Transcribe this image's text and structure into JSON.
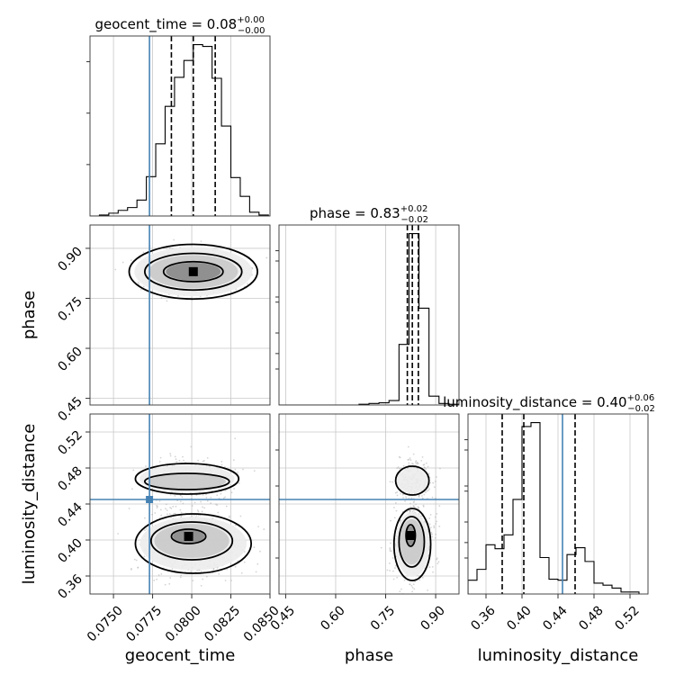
{
  "chart_data": {
    "type": "corner",
    "parameters": [
      "geocent_time",
      "phase",
      "luminosity_distance"
    ],
    "titles": [
      {
        "param": "geocent_time",
        "prefix": "geocent_time = ",
        "value": "0.08",
        "plus": "+0.00",
        "minus": "−0.00"
      },
      {
        "param": "phase",
        "prefix": "phase = ",
        "value": "0.83",
        "plus": "+0.02",
        "minus": "−0.02"
      },
      {
        "param": "luminosity_distance",
        "prefix": "luminosity_distance = ",
        "value": "0.40",
        "plus": "+0.06",
        "minus": "−0.02"
      }
    ],
    "axes": {
      "geocent_time": {
        "range": [
          0.0735,
          0.085
        ],
        "ticks": [
          0.075,
          0.0775,
          0.08,
          0.0825,
          0.085
        ],
        "tick_labels": [
          "0.0750",
          "0.0775",
          "0.0800",
          "0.0825",
          "0.0850"
        ]
      },
      "phase": {
        "range": [
          0.43,
          0.97
        ],
        "ticks": [
          0.45,
          0.6,
          0.75,
          0.9
        ],
        "tick_labels": [
          "0.45",
          "0.60",
          "0.75",
          "0.90"
        ]
      },
      "luminosity_distance": {
        "range": [
          0.34,
          0.54
        ],
        "ticks": [
          0.36,
          0.4,
          0.44,
          0.48,
          0.52
        ],
        "tick_labels": [
          "0.36",
          "0.40",
          "0.44",
          "0.48",
          "0.52"
        ]
      }
    },
    "truths": {
      "geocent_time": 0.0773,
      "phase": null,
      "luminosity_distance": 0.445
    },
    "quantiles": {
      "geocent_time": [
        0.0787,
        0.0801,
        0.0815
      ],
      "phase": [
        0.815,
        0.83,
        0.848
      ],
      "luminosity_distance": [
        0.378,
        0.402,
        0.459
      ]
    },
    "histograms": {
      "geocent_time": {
        "edges": [
          0.0735,
          0.0741,
          0.0747,
          0.0753,
          0.0759,
          0.0765,
          0.0771,
          0.0777,
          0.0783,
          0.0789,
          0.0795,
          0.0801,
          0.0807,
          0.0813,
          0.0819,
          0.0825,
          0.0831,
          0.0837,
          0.0843,
          0.0849
        ],
        "counts": [
          0,
          1,
          3,
          6,
          9,
          17,
          42,
          77,
          117,
          148,
          166,
          183,
          181,
          147,
          96,
          41,
          21,
          4,
          1
        ]
      },
      "phase": {
        "edges": [
          0.43,
          0.46,
          0.49,
          0.52,
          0.55,
          0.58,
          0.61,
          0.64,
          0.67,
          0.7,
          0.73,
          0.76,
          0.79,
          0.82,
          0.85,
          0.88,
          0.91,
          0.94,
          0.97
        ],
        "counts": [
          0,
          0,
          0,
          0,
          0,
          0,
          0,
          0,
          1,
          2,
          3,
          6,
          82,
          232,
          131,
          12,
          2,
          1
        ]
      },
      "luminosity_distance": {
        "edges": [
          0.34,
          0.35,
          0.36,
          0.37,
          0.38,
          0.39,
          0.4,
          0.41,
          0.42,
          0.43,
          0.44,
          0.45,
          0.46,
          0.47,
          0.48,
          0.49,
          0.5,
          0.51,
          0.52,
          0.53
        ],
        "counts": [
          14,
          25,
          50,
          46,
          60,
          96,
          170,
          174,
          37,
          15,
          14,
          40,
          47,
          33,
          11,
          9,
          6,
          2,
          2
        ]
      }
    },
    "contours": {
      "geocent_time__phase": [
        {
          "level": 1,
          "center": [
            0.0801,
            0.83
          ],
          "radii": [
            0.0019,
            0.03
          ]
        },
        {
          "level": 2,
          "center": [
            0.0801,
            0.83
          ],
          "radii": [
            0.0031,
            0.055
          ]
        },
        {
          "level": 3,
          "center": [
            0.0801,
            0.83
          ],
          "radii": [
            0.0041,
            0.082
          ]
        }
      ],
      "geocent_time__luminosity_distance": [
        {
          "level": 1,
          "center": [
            0.0798,
            0.404
          ],
          "radii": [
            0.0011,
            0.008
          ]
        },
        {
          "level": 2,
          "center": [
            0.08,
            0.399
          ],
          "radii": [
            0.0026,
            0.021
          ]
        },
        {
          "level": 3,
          "center": [
            0.0801,
            0.396
          ],
          "radii": [
            0.0037,
            0.033
          ]
        },
        {
          "level": 2,
          "center": [
            0.0797,
            0.465
          ],
          "radii": [
            0.0027,
            0.009
          ]
        },
        {
          "level": 3,
          "center": [
            0.0797,
            0.468
          ],
          "radii": [
            0.0033,
            0.017
          ]
        }
      ],
      "phase__luminosity_distance": [
        {
          "level": 1,
          "center": [
            0.825,
            0.405
          ],
          "radii": [
            0.014,
            0.012
          ]
        },
        {
          "level": 2,
          "center": [
            0.828,
            0.398
          ],
          "radii": [
            0.038,
            0.028
          ]
        },
        {
          "level": 3,
          "center": [
            0.83,
            0.395
          ],
          "radii": [
            0.055,
            0.04
          ]
        },
        {
          "level": 3,
          "center": [
            0.83,
            0.466
          ],
          "radii": [
            0.05,
            0.016
          ]
        }
      ]
    },
    "grid": true,
    "line_color": "#000000",
    "truth_color": "#4682b4",
    "sample_color": "#b0b0b0"
  }
}
